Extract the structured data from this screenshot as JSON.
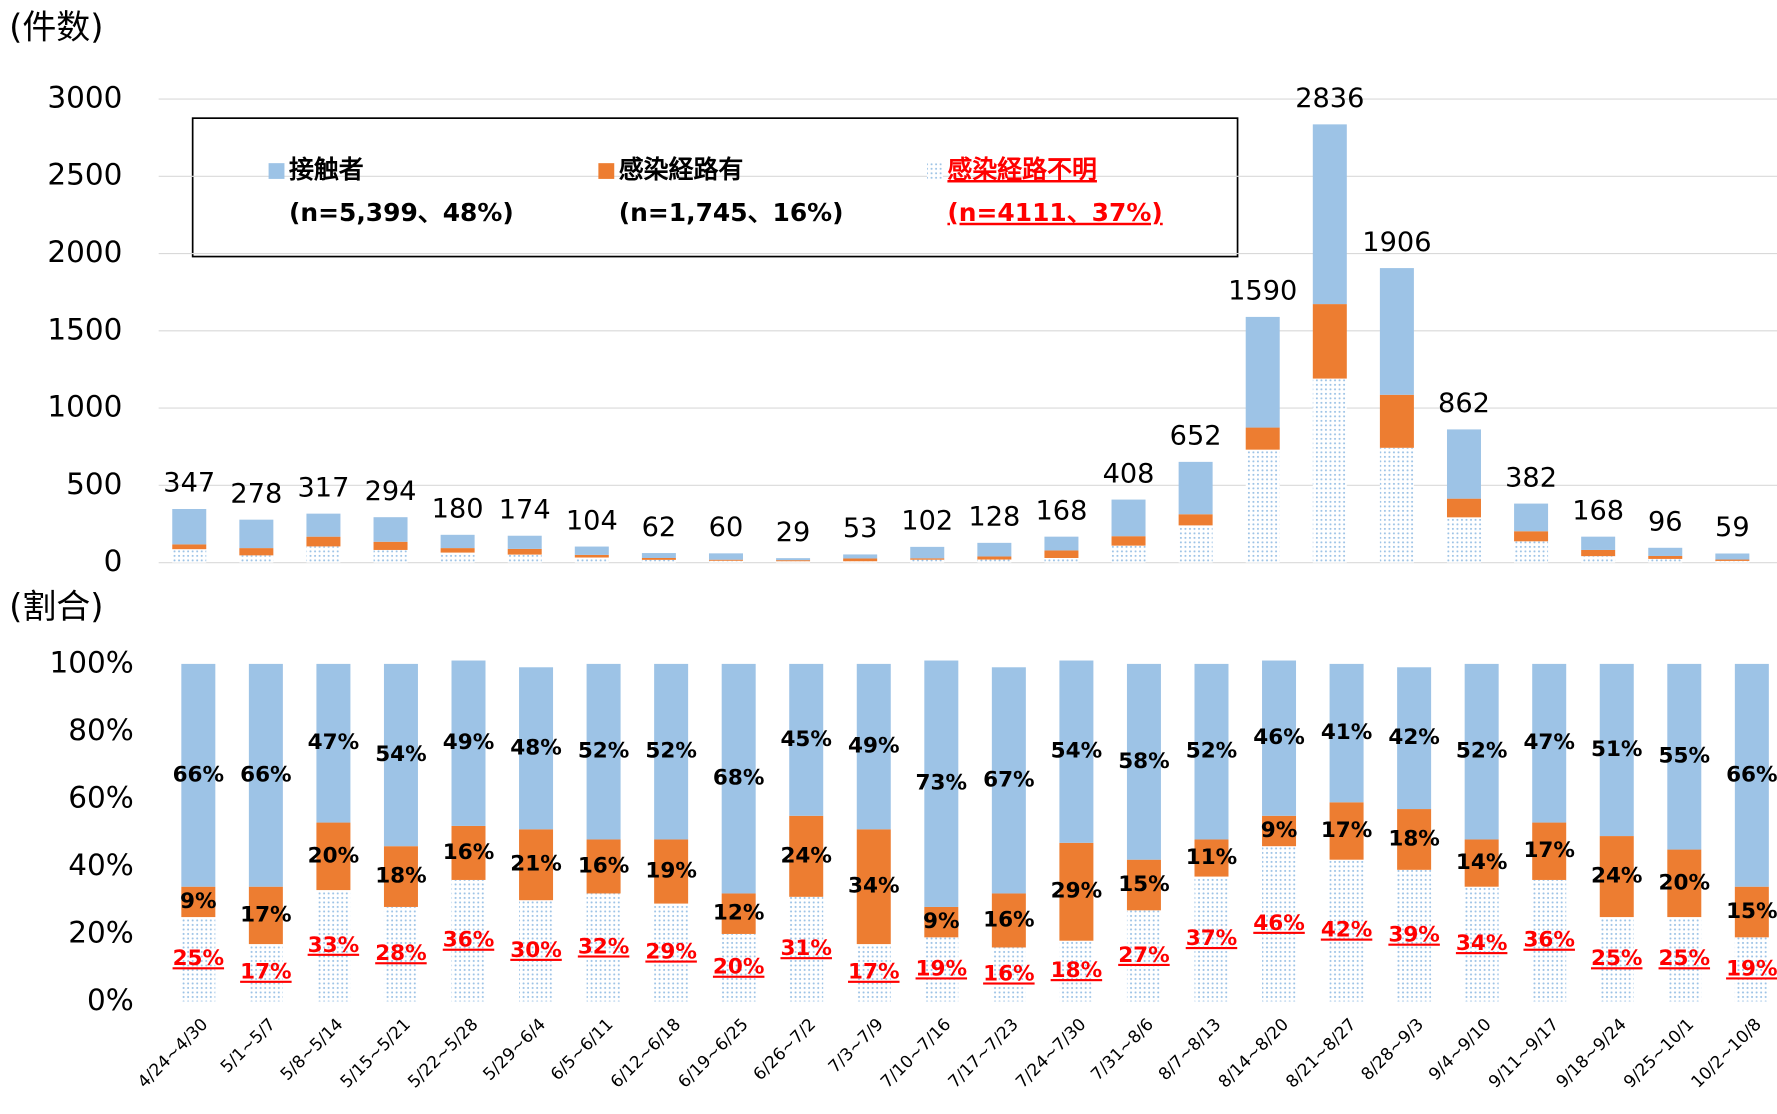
{
  "chart_data": [
    {
      "type": "stacked_bar",
      "axis_label": "(件数)",
      "categories": [
        "4/24~4/30",
        "5/1~5/7",
        "5/8~5/14",
        "5/15~5/21",
        "5/22~5/28",
        "5/29~6/4",
        "6/5~6/11",
        "6/12~6/18",
        "6/19~6/25",
        "6/26~7/2",
        "7/3~7/9",
        "7/10~7/16",
        "7/17~7/23",
        "7/24~7/30",
        "7/31~8/6",
        "8/7~8/13",
        "8/14~8/20",
        "8/21~8/27",
        "8/28~9/3",
        "9/4~9/10",
        "9/11~9/17",
        "9/18~9/24",
        "9/25~10/1",
        "10/2~10/8"
      ],
      "totals": [
        347,
        278,
        317,
        294,
        180,
        174,
        104,
        62,
        60,
        29,
        53,
        102,
        128,
        168,
        408,
        652,
        1590,
        2836,
        1906,
        862,
        382,
        168,
        96,
        59
      ],
      "series": [
        {
          "name": "感染経路不明",
          "note": "(n=4111、37%)",
          "color": "#9dc3e6",
          "pattern": "dots",
          "values": [
            87,
            47,
            105,
            82,
            65,
            52,
            33,
            18,
            12,
            9,
            9,
            19,
            20,
            30,
            110,
            241,
            731,
            1191,
            743,
            293,
            138,
            42,
            24,
            11
          ]
        },
        {
          "name": "感染経路有",
          "note": "(n=1,745、16%)",
          "color": "#ed7d31",
          "values": [
            31,
            47,
            63,
            53,
            29,
            37,
            17,
            12,
            7,
            7,
            18,
            9,
            20,
            49,
            61,
            72,
            143,
            482,
            343,
            121,
            65,
            40,
            19,
            9
          ]
        },
        {
          "name": "接触者",
          "note": "(n=5,399、48%)",
          "color": "#9dc3e6",
          "values": [
            229,
            184,
            149,
            159,
            86,
            85,
            54,
            32,
            41,
            13,
            26,
            74,
            88,
            89,
            237,
            339,
            716,
            1163,
            820,
            448,
            179,
            86,
            53,
            39
          ]
        }
      ],
      "ylim": [
        0,
        3000
      ],
      "yticks": [
        0,
        500,
        1000,
        1500,
        2000,
        2500,
        3000
      ],
      "grid": true
    },
    {
      "type": "stacked_bar_percent",
      "axis_label": "(割合)",
      "series": [
        {
          "name": "感染経路不明",
          "color": "#9dc3e6",
          "pattern": "dots",
          "label_color": "#ff0000",
          "values": [
            25,
            17,
            33,
            28,
            36,
            30,
            32,
            29,
            20,
            31,
            17,
            19,
            16,
            18,
            27,
            37,
            46,
            42,
            39,
            34,
            36,
            25,
            25,
            19
          ],
          "value_labels": [
            "25%",
            "17%",
            "33%",
            "28%",
            "36%",
            "30%",
            "32%",
            "29%",
            "20%",
            "31%",
            "17%",
            "19%",
            "16%",
            "18%",
            "27%",
            "37%",
            "46%",
            "42%",
            "39%",
            "34%",
            "36%",
            "25%",
            "25%",
            "19%"
          ]
        },
        {
          "name": "感染経路有",
          "color": "#ed7d31",
          "values": [
            9,
            17,
            20,
            18,
            16,
            21,
            16,
            19,
            12,
            24,
            34,
            9,
            16,
            29,
            15,
            11,
            9,
            17,
            18,
            14,
            17,
            24,
            20,
            15
          ],
          "value_labels": [
            "9%",
            "17%",
            "20%",
            "18%",
            "16%",
            "21%",
            "16%",
            "19%",
            "12%",
            "24%",
            "34%",
            "9%",
            "16%",
            "29%",
            "15%",
            "11%",
            "9%",
            "17%",
            "18%",
            "14%",
            "17%",
            "24%",
            "20%",
            "15%"
          ]
        },
        {
          "name": "接触者",
          "color": "#9dc3e6",
          "values": [
            66,
            66,
            47,
            54,
            49,
            48,
            52,
            52,
            68,
            45,
            49,
            73,
            67,
            54,
            58,
            52,
            46,
            41,
            42,
            52,
            47,
            51,
            55,
            66
          ],
          "value_labels": [
            "66%",
            "66%",
            "47%",
            "54%",
            "49%",
            "48%",
            "52%",
            "52%",
            "68%",
            "45%",
            "49%",
            "73%",
            "67%",
            "54%",
            "58%",
            "52%",
            "46%",
            "41%",
            "42%",
            "52%",
            "47%",
            "51%",
            "55%",
            "66%"
          ]
        }
      ],
      "ylim": [
        0,
        100
      ],
      "yticks": [
        {
          "value": 0,
          "label": "0%"
        },
        {
          "value": 20,
          "label": "20%"
        },
        {
          "value": 40,
          "label": "40%"
        },
        {
          "value": 60,
          "label": "60%"
        },
        {
          "value": 80,
          "label": "80%"
        },
        {
          "value": 100,
          "label": "100%"
        }
      ],
      "grid": false
    }
  ]
}
